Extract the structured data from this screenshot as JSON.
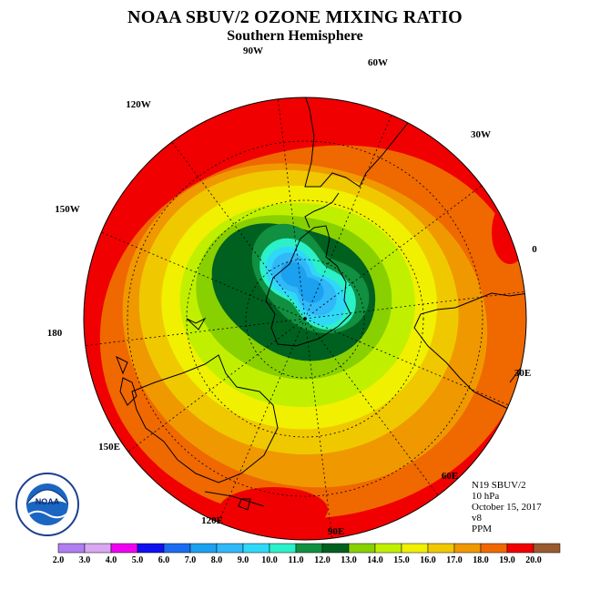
{
  "title": "NOAA SBUV/2 OZONE MIXING RATIO",
  "subtitle": "Southern Hemisphere",
  "meridian_labels": [
    {
      "text": "90W"
    },
    {
      "text": "60W"
    },
    {
      "text": "30W"
    },
    {
      "text": "0"
    },
    {
      "text": "30E"
    },
    {
      "text": "60E"
    },
    {
      "text": "90E"
    },
    {
      "text": "120E"
    },
    {
      "text": "150E"
    },
    {
      "text": "180"
    },
    {
      "text": "150W"
    },
    {
      "text": "120W"
    }
  ],
  "info": {
    "satellite": "N19 SBUV/2",
    "level": "10 hPa",
    "date": "October 15, 2017",
    "version": "v8",
    "units": "PPM"
  },
  "logo": {
    "text": "NOAA",
    "ring_text": "NATIONAL OCEANIC AND ATMOSPHERIC ADMINISTRATION · U.S. DEPARTMENT OF COMMERCE"
  },
  "legend": {
    "ticks": [
      "2.0",
      "3.0",
      "4.0",
      "5.0",
      "6.0",
      "7.0",
      "8.0",
      "9.0",
      "10.0",
      "11.0",
      "12.0",
      "13.0",
      "14.0",
      "15.0",
      "16.0",
      "17.0",
      "18.0",
      "19.0",
      "20.0"
    ],
    "colors": [
      "#b07ef0",
      "#d8a8f0",
      "#f000f0",
      "#1010f0",
      "#1c6cf0",
      "#1ca0f0",
      "#30b8f8",
      "#30d8f8",
      "#2cf0c8",
      "#109040",
      "#006020",
      "#88d000",
      "#c0f000",
      "#f0f000",
      "#f0c800",
      "#f09800",
      "#f06800",
      "#f00000",
      "#9a5a30"
    ]
  },
  "field": {
    "levels": [
      {
        "value": 19.0,
        "color": "#f00000"
      },
      {
        "value": 18.0,
        "color": "#f06800"
      },
      {
        "value": 17.0,
        "color": "#f09800"
      },
      {
        "value": 16.0,
        "color": "#f0c800"
      },
      {
        "value": 15.0,
        "color": "#f0f000"
      },
      {
        "value": 14.0,
        "color": "#c0f000"
      },
      {
        "value": 13.0,
        "color": "#88d000"
      },
      {
        "value": 12.0,
        "color": "#006020"
      },
      {
        "value": 11.0,
        "color": "#109040"
      },
      {
        "value": 10.0,
        "color": "#2cf0c8"
      },
      {
        "value": 9.0,
        "color": "#30d8f8"
      },
      {
        "value": 8.0,
        "color": "#30b8f8"
      },
      {
        "value": 7.0,
        "color": "#1ca0f0"
      }
    ]
  }
}
